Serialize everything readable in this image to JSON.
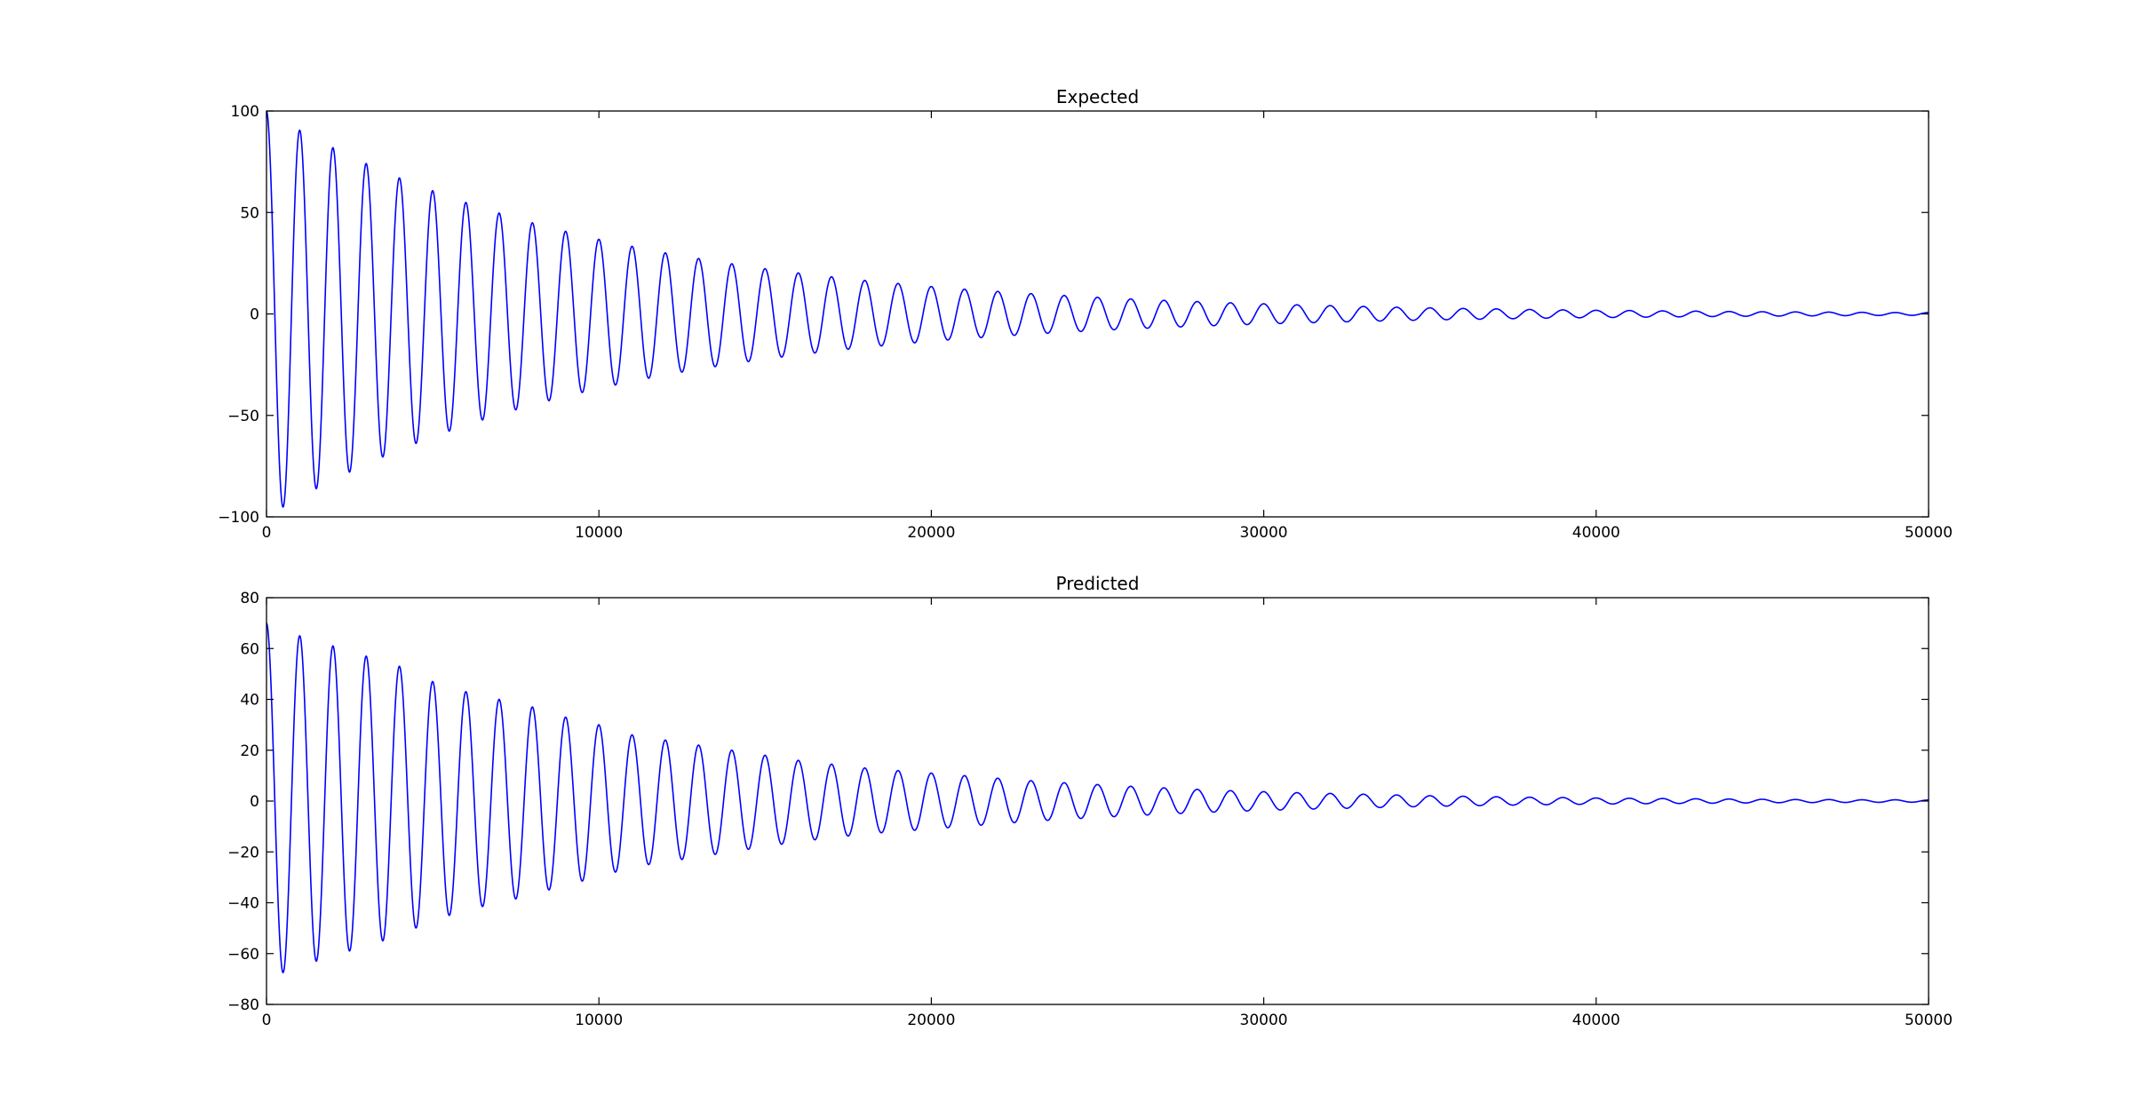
{
  "chart_data": [
    {
      "type": "line",
      "title": "Expected",
      "xlabel": "",
      "ylabel": "",
      "xlim": [
        0,
        50000
      ],
      "ylim": [
        -100,
        100
      ],
      "xticks": [
        "0",
        "10000",
        "20000",
        "30000",
        "40000",
        "50000"
      ],
      "xtick_values": [
        0,
        10000,
        20000,
        30000,
        40000,
        50000
      ],
      "yticks": [
        "100",
        "50",
        "0",
        "−50",
        "−100"
      ],
      "ytick_values": [
        100,
        50,
        0,
        -50,
        -100
      ],
      "grid": false,
      "series": [
        {
          "color": "#0000ff",
          "x": [
            0,
            1000,
            2000,
            3000,
            4000,
            5000,
            6000,
            7000,
            8000,
            9000,
            10000,
            11000,
            12000,
            13000,
            14000,
            15000,
            16000,
            17000,
            18000,
            19000,
            20000,
            21000,
            22000,
            23000,
            24000,
            25000,
            26000,
            27000,
            28000,
            29000,
            30000,
            31000,
            32000,
            33000,
            34000,
            35000,
            36000,
            37000,
            38000,
            39000,
            40000,
            41000,
            42000,
            43000,
            44000,
            45000,
            46000,
            47000,
            48000,
            49000,
            50000
          ],
          "y": [
            100,
            90.5,
            81.9,
            74.1,
            67.0,
            60.7,
            54.9,
            49.7,
            44.9,
            40.7,
            36.8,
            33.3,
            30.1,
            27.3,
            24.7,
            22.3,
            20.2,
            18.3,
            16.5,
            15.0,
            13.5,
            12.2,
            11.1,
            10.0,
            9.1,
            8.2,
            7.4,
            6.7,
            6.1,
            5.5,
            5.0,
            4.5,
            4.1,
            3.7,
            3.3,
            3.0,
            2.7,
            2.5,
            2.2,
            2.0,
            1.8,
            1.7,
            1.5,
            1.4,
            1.2,
            1.1,
            1.0,
            0.9,
            0.8,
            0.7,
            0.7
          ],
          "period": 1000,
          "note_shape": "decaying oscillation; listed y are peak amplitudes at each x"
        }
      ]
    },
    {
      "type": "line",
      "title": "Predicted",
      "xlabel": "",
      "ylabel": "",
      "xlim": [
        0,
        50000
      ],
      "ylim": [
        -80,
        80
      ],
      "xticks": [
        "0",
        "10000",
        "20000",
        "30000",
        "40000",
        "50000"
      ],
      "xtick_values": [
        0,
        10000,
        20000,
        30000,
        40000,
        50000
      ],
      "yticks": [
        "80",
        "60",
        "40",
        "20",
        "0",
        "−20",
        "−40",
        "−60",
        "−80"
      ],
      "ytick_values": [
        80,
        60,
        40,
        20,
        0,
        -20,
        -40,
        -60,
        -80
      ],
      "grid": false,
      "series": [
        {
          "color": "#0000ff",
          "x": [
            0,
            1000,
            2000,
            3000,
            4000,
            5000,
            6000,
            7000,
            8000,
            9000,
            10000,
            11000,
            12000,
            13000,
            14000,
            15000,
            16000,
            17000,
            18000,
            19000,
            20000,
            21000,
            22000,
            23000,
            24000,
            25000,
            26000,
            27000,
            28000,
            29000,
            30000,
            31000,
            32000,
            33000,
            34000,
            35000,
            36000,
            37000,
            38000,
            39000,
            40000,
            41000,
            42000,
            43000,
            44000,
            45000,
            46000,
            47000,
            48000,
            49000,
            50000
          ],
          "y": [
            70,
            65,
            61,
            57,
            53,
            47,
            43,
            40,
            37,
            33,
            30,
            26,
            24,
            22,
            20,
            18,
            16,
            14.5,
            13,
            12,
            11,
            10,
            9,
            8,
            7.2,
            6.5,
            5.8,
            5.2,
            4.6,
            4.1,
            3.7,
            3.3,
            3.0,
            2.7,
            2.4,
            2.1,
            1.9,
            1.7,
            1.5,
            1.4,
            1.2,
            1.1,
            1.0,
            0.9,
            0.8,
            0.7,
            0.6,
            0.6,
            0.5,
            0.5,
            0.4
          ],
          "period": 1000,
          "note_shape": "decaying oscillation; listed y are peak amplitudes at each x"
        }
      ]
    }
  ]
}
